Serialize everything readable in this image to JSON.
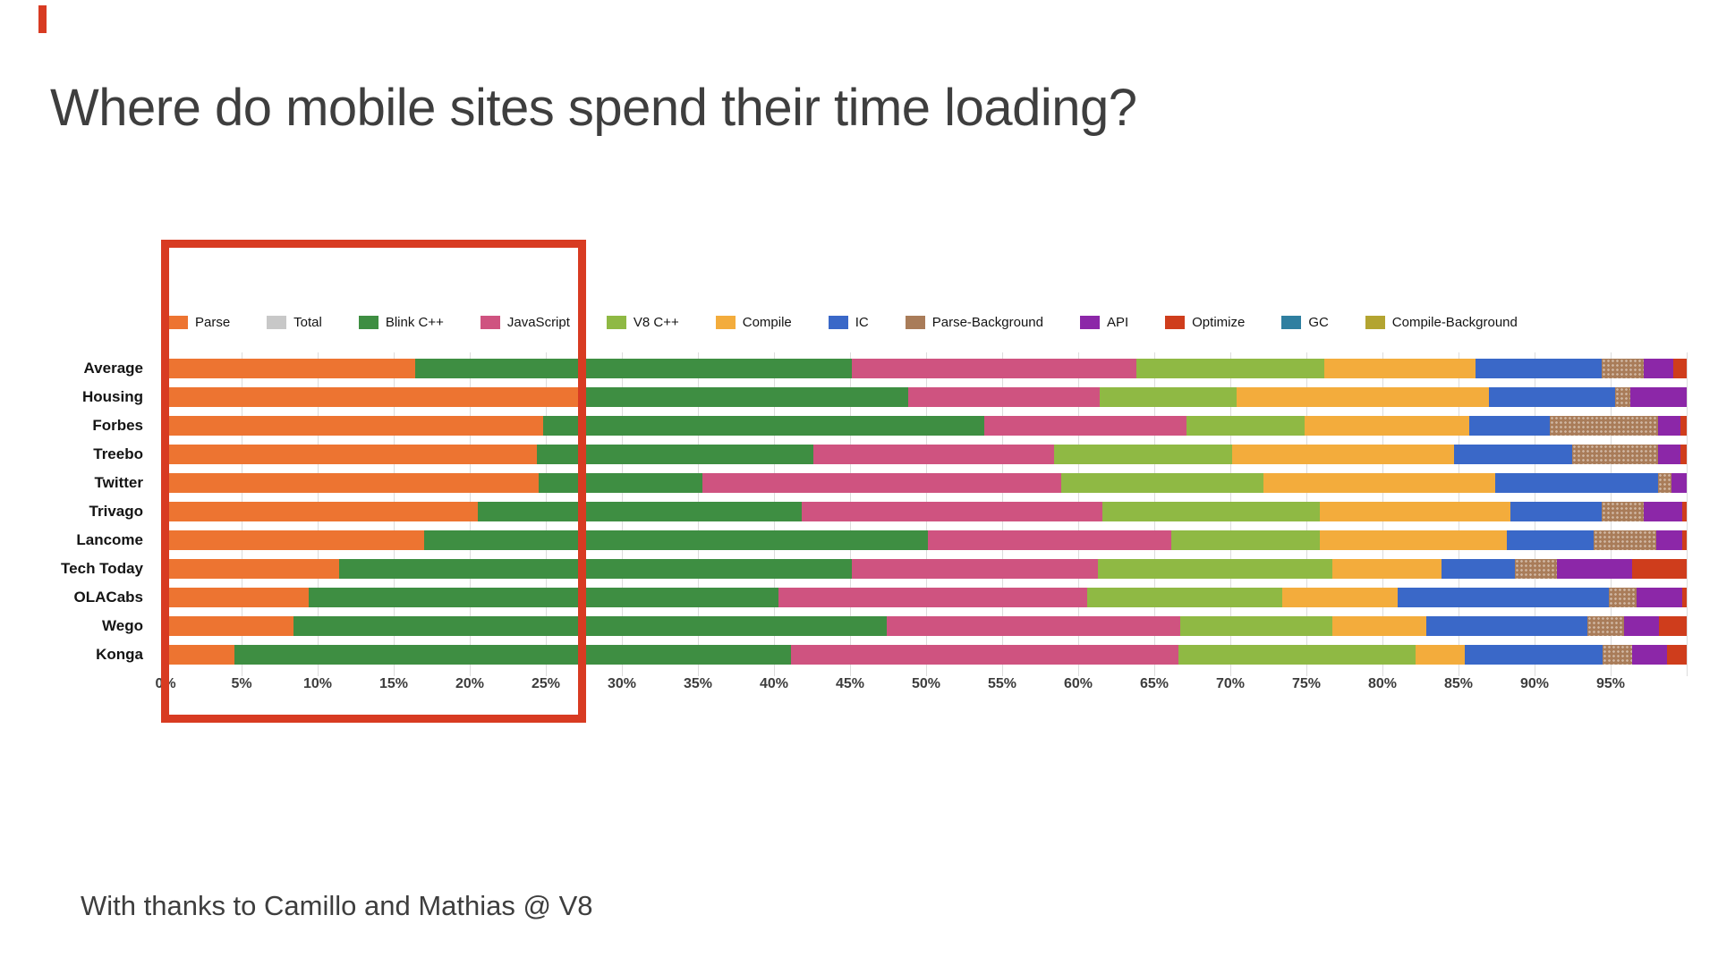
{
  "slide": {
    "title": "Where do mobile sites spend their time loading?",
    "credit": "With thanks to Camillo and Mathias @ V8"
  },
  "colors": {
    "highlight_red": "#d83b22",
    "title_text": "#3e3e3e",
    "gridline": "#dcdcdc"
  },
  "annotation": {
    "description": "red rectangle highlighting the 0%-27% Parse region of the chart",
    "covers_from_pct": 0,
    "covers_to_pct": 27.5
  },
  "chart_data": {
    "type": "bar",
    "stacked": true,
    "orientation": "horizontal",
    "unit": "percent",
    "xlim": [
      0,
      100
    ],
    "grid": true,
    "legend_position": "top",
    "x_ticks": [
      "0%",
      "5%",
      "10%",
      "15%",
      "20%",
      "25%",
      "30%",
      "35%",
      "40%",
      "45%",
      "50%",
      "55%",
      "60%",
      "65%",
      "70%",
      "75%",
      "80%",
      "85%",
      "90%",
      "95%"
    ],
    "categories": [
      "Average",
      "Housing",
      "Forbes",
      "Treebo",
      "Twitter",
      "Trivago",
      "Lancome",
      "Tech Today",
      "OLACabs",
      "Wego",
      "Konga"
    ],
    "legend": [
      "Parse",
      "Total",
      "Blink C++",
      "JavaScript",
      "V8 C++",
      "Compile",
      "IC",
      "Parse-Background",
      "API",
      "Optimize",
      "GC",
      "Compile-Background"
    ],
    "series": [
      {
        "name": "Parse",
        "color": "#ed7431",
        "pattern": null,
        "values": [
          16.4,
          27.5,
          24.8,
          24.4,
          24.5,
          20.5,
          17.0,
          11.4,
          9.4,
          8.4,
          4.5
        ]
      },
      {
        "name": "Total",
        "color": "#c8c8c8",
        "pattern": null,
        "values": [
          0,
          0,
          0,
          0,
          0,
          0,
          0,
          0,
          0,
          0,
          0
        ]
      },
      {
        "name": "Blink C++",
        "color": "#3e8e42",
        "pattern": null,
        "values": [
          28.7,
          21.3,
          29.0,
          18.2,
          10.8,
          21.3,
          33.1,
          33.7,
          30.9,
          39.0,
          36.6
        ]
      },
      {
        "name": "JavaScript",
        "color": "#cf5380",
        "pattern": null,
        "values": [
          18.7,
          12.6,
          13.3,
          15.8,
          23.6,
          19.8,
          16.0,
          16.2,
          20.3,
          19.3,
          25.5
        ]
      },
      {
        "name": "V8 C++",
        "color": "#8fb944",
        "pattern": null,
        "values": [
          12.4,
          9.0,
          7.8,
          11.7,
          13.3,
          14.3,
          9.8,
          15.4,
          12.8,
          10.0,
          15.6
        ]
      },
      {
        "name": "Compile",
        "color": "#f3ac3c",
        "pattern": null,
        "values": [
          9.9,
          16.6,
          10.8,
          14.6,
          15.2,
          12.5,
          12.3,
          7.2,
          7.6,
          6.2,
          3.2
        ]
      },
      {
        "name": "IC",
        "color": "#3a68c8",
        "pattern": null,
        "values": [
          8.3,
          8.3,
          5.3,
          7.8,
          10.7,
          6.0,
          5.7,
          4.8,
          13.9,
          10.6,
          9.1
        ]
      },
      {
        "name": "Parse-Background",
        "color": "#a97c59",
        "pattern": "dots",
        "values": [
          2.8,
          1.0,
          7.1,
          5.6,
          0.9,
          2.8,
          4.1,
          2.8,
          1.8,
          2.4,
          1.9
        ]
      },
      {
        "name": "API",
        "color": "#8c27a8",
        "pattern": null,
        "values": [
          1.9,
          3.7,
          1.5,
          1.5,
          1.0,
          2.5,
          1.7,
          4.9,
          3.0,
          2.3,
          2.3
        ]
      },
      {
        "name": "Optimize",
        "color": "#cf3d1c",
        "pattern": null,
        "values": [
          0.9,
          0,
          0.4,
          0.4,
          0,
          0.3,
          0.3,
          3.6,
          0.3,
          1.8,
          1.3
        ]
      },
      {
        "name": "GC",
        "color": "#2f7fa0",
        "pattern": "dots",
        "values": [
          0,
          0,
          0,
          0,
          0,
          0,
          0,
          0,
          0,
          0,
          0
        ]
      },
      {
        "name": "Compile-Background",
        "color": "#b3a431",
        "pattern": "dots",
        "values": [
          0,
          0,
          0,
          0,
          0,
          0,
          0,
          0,
          0,
          0,
          0
        ]
      }
    ]
  }
}
